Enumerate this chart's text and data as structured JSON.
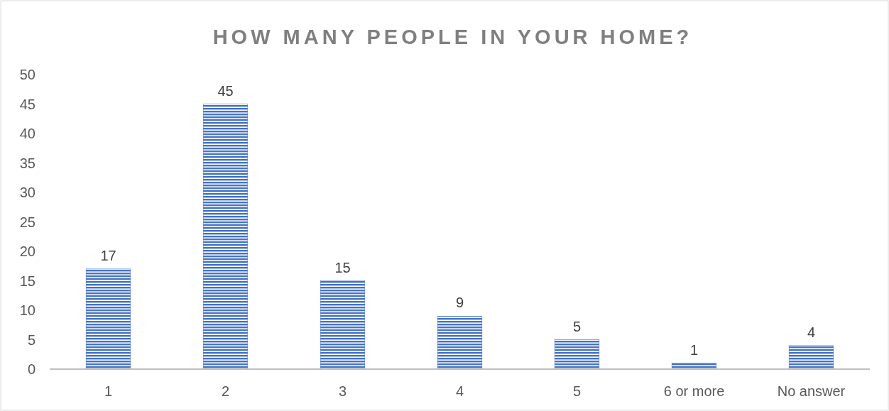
{
  "chart_data": {
    "type": "bar",
    "title": "HOW MANY PEOPLE IN YOUR HOME?",
    "categories": [
      "1",
      "2",
      "3",
      "4",
      "5",
      "6 or more",
      "No answer"
    ],
    "values": [
      17,
      45,
      15,
      9,
      5,
      1,
      4
    ],
    "color": "#4472c4",
    "ylim": [
      0,
      50
    ],
    "yticks": [
      0,
      5,
      10,
      15,
      20,
      25,
      30,
      35,
      40,
      45,
      50
    ],
    "data_labels": true,
    "grid": false
  }
}
